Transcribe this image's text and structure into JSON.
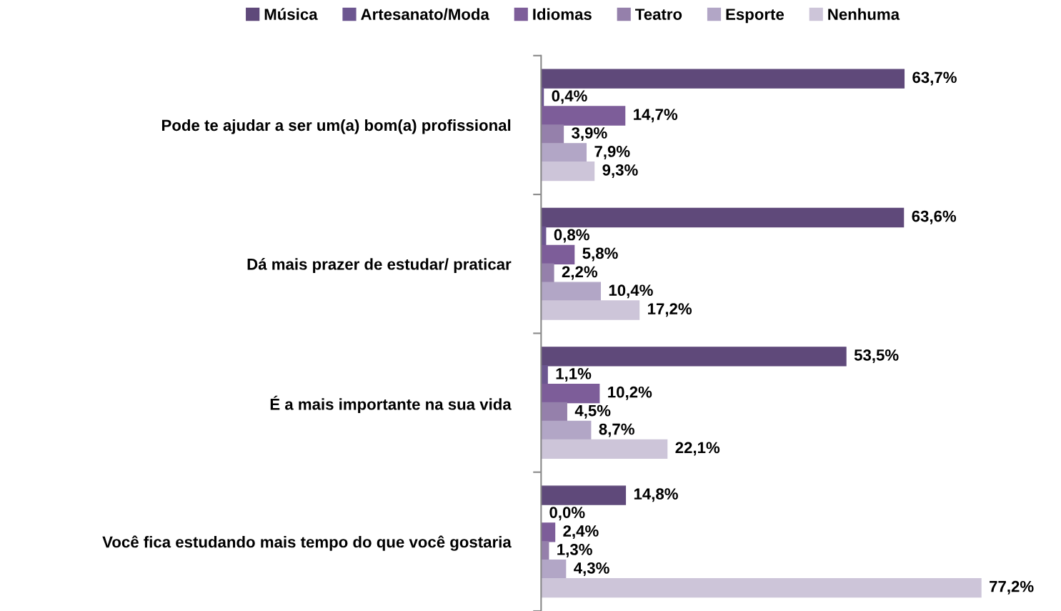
{
  "chart_data": {
    "type": "bar",
    "orientation": "horizontal",
    "legend": "top",
    "tick_labels": "y",
    "categories": [
      "Pode te ajudar a ser um(a) bom(a) profissional",
      "Dá mais prazer de estudar/ praticar",
      "É a mais importante na sua vida",
      "Você fica estudando mais tempo do que você gostaria"
    ],
    "series": [
      {
        "name": "Música",
        "color": "#5f497a",
        "values": [
          63.7,
          63.6,
          53.5,
          14.8
        ],
        "value_labels": [
          "63,7%",
          "63,6%",
          "53,5%",
          "14,8%"
        ]
      },
      {
        "name": "Artesanato/Moda",
        "color": "#6c5690",
        "values": [
          0.4,
          0.8,
          1.1,
          0.0
        ],
        "value_labels": [
          "0,4%",
          "0,8%",
          "1,1%",
          "0,0%"
        ]
      },
      {
        "name": "Idiomas",
        "color": "#7d5d99",
        "values": [
          14.7,
          5.8,
          10.2,
          2.4
        ],
        "value_labels": [
          "14,7%",
          "5,8%",
          "10,2%",
          "2,4%"
        ]
      },
      {
        "name": "Teatro",
        "color": "#9580ab",
        "values": [
          3.9,
          2.2,
          4.5,
          1.3
        ],
        "value_labels": [
          "3,9%",
          "2,2%",
          "4,5%",
          "1,3%"
        ]
      },
      {
        "name": "Esporte",
        "color": "#b2a6c6",
        "values": [
          7.9,
          10.4,
          8.7,
          4.3
        ],
        "value_labels": [
          "7,9%",
          "10,4%",
          "8,7%",
          "4,3%"
        ]
      },
      {
        "name": "Nenhuma",
        "color": "#cdc5d9",
        "values": [
          9.3,
          17.2,
          22.1,
          77.2
        ],
        "value_labels": [
          "9,3%",
          "17,2%",
          "22,1%",
          "77,2%"
        ]
      }
    ]
  }
}
